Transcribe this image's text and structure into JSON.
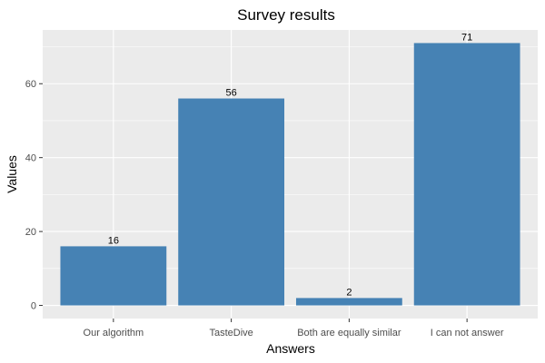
{
  "chart_data": {
    "type": "bar",
    "title": "Survey results",
    "xlabel": "Answers",
    "ylabel": "Values",
    "categories": [
      "Our algorithm",
      "TasteDive",
      "Both are equally similar",
      "I can not answer"
    ],
    "values": [
      16,
      56,
      2,
      71
    ],
    "data_labels": [
      "16",
      "56",
      "2",
      "71"
    ],
    "yticks": [
      0,
      20,
      40,
      60
    ],
    "ytick_labels": [
      "0",
      "20",
      "40",
      "60"
    ],
    "ylim": [
      -3.55,
      74.55
    ],
    "grid": true,
    "legend": "none",
    "colors": {
      "bar": "#4682b4",
      "panel": "#ebebeb",
      "grid_major": "#ffffff",
      "tick_text": "#4d4d4d",
      "tick_mark": "#333333"
    }
  }
}
